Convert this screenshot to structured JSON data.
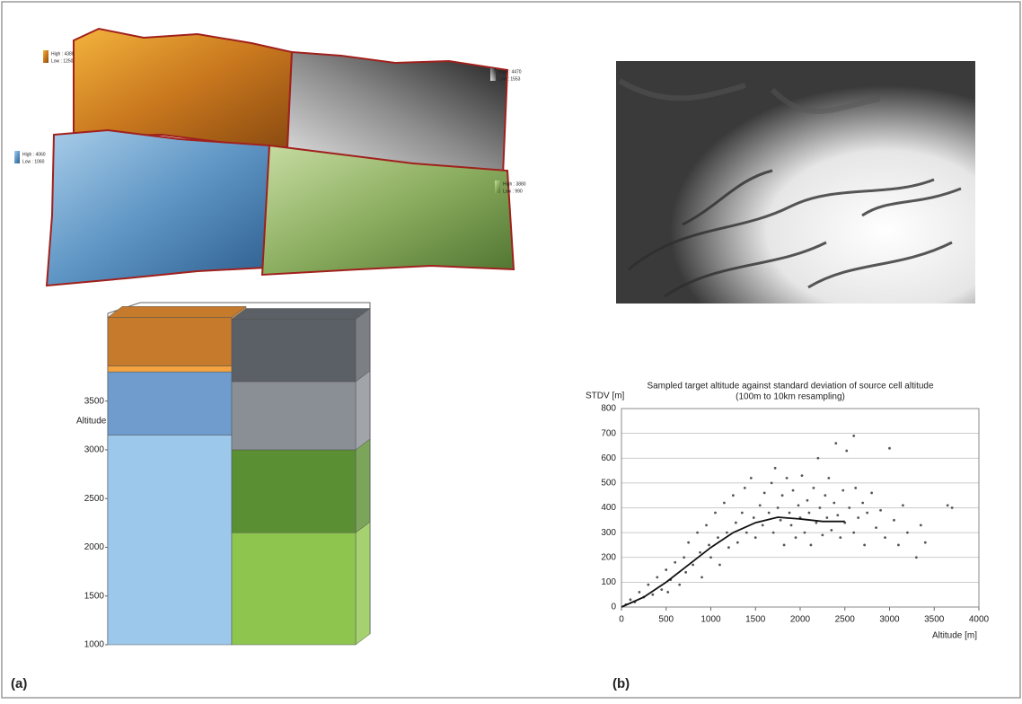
{
  "terrain_legends": [
    {
      "high": "High : 4380",
      "low": "Low : 1250"
    },
    {
      "high": "High : 4470",
      "low": "Low : 1553"
    },
    {
      "high": "High : 4060",
      "low": "Low : 1060"
    },
    {
      "high": "High : 3880",
      "low": "Low : 990"
    }
  ],
  "panel_labels": [
    "(a)",
    "(b)"
  ],
  "chart_data": [
    {
      "type": "stacked3d",
      "y_label": "Altitude [m]",
      "ylim": [
        1000,
        4400
      ],
      "yticks": [
        1000,
        1500,
        2000,
        2500,
        3000,
        3500
      ],
      "columns": [
        {
          "segments": [
            {
              "value": 2150,
              "color": "#9cc8ec"
            },
            {
              "value": 650,
              "color": "#6f9ccc"
            },
            {
              "value": 60,
              "color": "#f4a240"
            },
            {
              "value": 500,
              "color": "#c57a2c"
            }
          ]
        },
        {
          "segments": [
            {
              "value": 1150,
              "color": "#8ec54e"
            },
            {
              "value": 850,
              "color": "#5b8f33"
            },
            {
              "value": 700,
              "color": "#8a8f95"
            },
            {
              "value": 640,
              "color": "#5b6066"
            }
          ]
        }
      ]
    },
    {
      "type": "scatter",
      "title": "Sampled target altitude against standard deviation of source cell altitude",
      "subtitle": "(100m to 10km resampling)",
      "y_label": "STDV [m]",
      "x_label": "Altitude [m]",
      "xlim": [
        0,
        4000
      ],
      "xticks": [
        0,
        500,
        1000,
        1500,
        2000,
        2500,
        3000,
        3500,
        4000
      ],
      "ylim": [
        0,
        800
      ],
      "yticks": [
        0,
        100,
        200,
        300,
        400,
        500,
        600,
        700,
        800
      ],
      "grid": true,
      "point_color": "#555555",
      "x": [
        50,
        100,
        150,
        200,
        250,
        300,
        350,
        400,
        450,
        500,
        520,
        550,
        600,
        650,
        700,
        720,
        750,
        800,
        850,
        880,
        900,
        950,
        980,
        1000,
        1050,
        1080,
        1100,
        1150,
        1180,
        1200,
        1250,
        1280,
        1300,
        1350,
        1380,
        1400,
        1450,
        1480,
        1500,
        1550,
        1580,
        1600,
        1650,
        1680,
        1700,
        1720,
        1750,
        1780,
        1800,
        1820,
        1850,
        1880,
        1900,
        1920,
        1950,
        1980,
        2000,
        2020,
        2050,
        2080,
        2100,
        2120,
        2150,
        2180,
        2200,
        2220,
        2250,
        2280,
        2300,
        2320,
        2350,
        2380,
        2400,
        2420,
        2450,
        2480,
        2500,
        2520,
        2550,
        2600,
        2620,
        2650,
        2700,
        2720,
        2750,
        2800,
        2850,
        2900,
        2950,
        3000,
        3050,
        3100,
        3150,
        3200,
        3300,
        3350,
        3400,
        3650,
        3700,
        2600
      ],
      "values": [
        10,
        30,
        20,
        60,
        40,
        90,
        50,
        120,
        70,
        150,
        60,
        110,
        180,
        90,
        200,
        140,
        260,
        170,
        300,
        220,
        120,
        330,
        250,
        200,
        380,
        280,
        170,
        420,
        300,
        240,
        450,
        340,
        260,
        380,
        480,
        300,
        520,
        360,
        280,
        410,
        330,
        460,
        380,
        500,
        300,
        560,
        400,
        350,
        450,
        250,
        520,
        380,
        330,
        470,
        280,
        410,
        360,
        530,
        300,
        430,
        380,
        250,
        480,
        340,
        600,
        400,
        290,
        450,
        360,
        520,
        310,
        420,
        660,
        370,
        280,
        470,
        340,
        630,
        400,
        300,
        480,
        360,
        420,
        250,
        380,
        460,
        320,
        390,
        280,
        640,
        350,
        250,
        410,
        300,
        200,
        330,
        260,
        410,
        400,
        690
      ],
      "trend": {
        "color": "#111111",
        "x": [
          0,
          250,
          500,
          750,
          1000,
          1250,
          1500,
          1750,
          2000,
          2250,
          2500
        ],
        "values": [
          0,
          40,
          100,
          170,
          240,
          300,
          340,
          362,
          355,
          345,
          345
        ]
      }
    }
  ]
}
